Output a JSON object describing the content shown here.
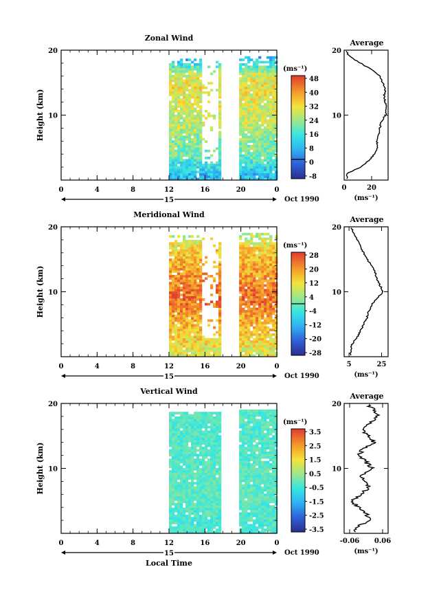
{
  "figure": {
    "date_label": "Oct 1990",
    "day_label": "15",
    "x_axis_label": "Local Time"
  },
  "chart_data": [
    {
      "type": "heatmap",
      "title": "Zonal Wind",
      "ylabel": "Height (km)",
      "xlabel": "",
      "x_ticks": [
        "0",
        "4",
        "8",
        "12",
        "16",
        "20",
        "0"
      ],
      "y_ticks": [
        "20",
        "10"
      ],
      "ylim": [
        0,
        20
      ],
      "xlim_hours": [
        0,
        24
      ],
      "data_intervals_hours": [
        [
          12,
          17.8
        ],
        [
          19.8,
          24
        ]
      ],
      "gap_heights_km": [],
      "colorbar": {
        "unit": "(ms⁻¹)",
        "ticks": [
          "48",
          "40",
          "32",
          "24",
          "16",
          "8",
          "0",
          "-8"
        ],
        "range": [
          -12,
          52
        ],
        "zero_line": 0
      },
      "profile_by_height_km": {
        "heights": [
          1,
          2,
          3,
          4,
          5,
          6,
          7,
          8,
          9,
          10,
          11,
          12,
          13,
          14,
          15,
          16,
          17,
          18,
          19,
          20
        ],
        "values": [
          8,
          12,
          16,
          20,
          22,
          23,
          24,
          26,
          28,
          28,
          30,
          30,
          31,
          32,
          32,
          30,
          24,
          14,
          6,
          2
        ]
      },
      "average": {
        "title": "Average",
        "xlabel": "(ms⁻¹)",
        "x_ticks": [
          "0",
          "20"
        ],
        "xlim": [
          0,
          32
        ],
        "y_ticks": [
          "20",
          "10"
        ],
        "heights": [
          1,
          2,
          3,
          4,
          5,
          6,
          7,
          8,
          9,
          10,
          11,
          12,
          13,
          14,
          15,
          16,
          17,
          18,
          19,
          20
        ],
        "values": [
          2,
          12,
          18,
          22,
          24,
          24,
          25,
          26,
          27,
          30,
          31,
          30,
          29,
          30,
          28,
          26,
          20,
          12,
          4,
          1
        ]
      }
    },
    {
      "type": "heatmap",
      "title": "Meridional Wind",
      "ylabel": "Height (km)",
      "xlabel": "",
      "x_ticks": [
        "0",
        "4",
        "8",
        "12",
        "16",
        "20",
        "0"
      ],
      "y_ticks": [
        "20",
        "10"
      ],
      "ylim": [
        0,
        20
      ],
      "xlim_hours": [
        0,
        24
      ],
      "data_intervals_hours": [
        [
          12,
          17.8
        ],
        [
          19.8,
          24
        ]
      ],
      "gap_heights_km": [],
      "colorbar": {
        "unit": "(ms⁻¹)",
        "ticks": [
          "28",
          "20",
          "12",
          "4",
          "-4",
          "-12",
          "-20",
          "-28"
        ],
        "range": [
          -32,
          32
        ],
        "zero_line": 0
      },
      "profile_by_height_km": {
        "heights": [
          1,
          2,
          3,
          4,
          5,
          6,
          7,
          8,
          9,
          10,
          11,
          12,
          13,
          14,
          15,
          16,
          17,
          18,
          19,
          20
        ],
        "values": [
          10,
          13,
          15,
          16,
          18,
          20,
          22,
          24,
          26,
          26,
          24,
          22,
          22,
          20,
          18,
          16,
          14,
          10,
          6,
          6
        ]
      },
      "average": {
        "title": "Average",
        "xlabel": "(ms⁻¹)",
        "x_ticks": [
          "5",
          "25"
        ],
        "xlim": [
          2,
          29
        ],
        "y_ticks": [
          "20",
          "10"
        ],
        "heights": [
          1,
          2,
          3,
          4,
          5,
          6,
          7,
          8,
          9,
          10,
          11,
          12,
          13,
          14,
          15,
          16,
          17,
          18,
          19,
          20
        ],
        "values": [
          6,
          7,
          10,
          12,
          14,
          16,
          17,
          19,
          22,
          26,
          24,
          22,
          21,
          19,
          16,
          14,
          12,
          10,
          8,
          6
        ]
      }
    },
    {
      "type": "heatmap",
      "title": "Vertical Wind",
      "ylabel": "Height (km)",
      "xlabel": "Local Time",
      "x_ticks": [
        "0",
        "4",
        "8",
        "12",
        "16",
        "20",
        "0"
      ],
      "y_ticks": [
        "20",
        "10"
      ],
      "ylim": [
        0,
        20
      ],
      "xlim_hours": [
        0,
        24
      ],
      "data_intervals_hours": [
        [
          12,
          17.8
        ],
        [
          19.8,
          24
        ]
      ],
      "gap_heights_km": [],
      "colorbar": {
        "unit": "(ms⁻¹)",
        "ticks": [
          "3.5",
          "2.5",
          "1.5",
          "0.5",
          "-0.5",
          "-1.5",
          "-2.5",
          "-3.5"
        ],
        "range": [
          -4,
          4
        ],
        "zero_line": null
      },
      "profile_by_height_km": {
        "heights": [
          1,
          2,
          3,
          4,
          5,
          6,
          7,
          8,
          9,
          10,
          11,
          12,
          13,
          14,
          15,
          16,
          17,
          18,
          19,
          20
        ],
        "values": [
          -0.4,
          -0.4,
          -0.3,
          -0.3,
          -0.2,
          -0.2,
          -0.2,
          -0.3,
          -0.2,
          -0.2,
          -0.3,
          -0.3,
          -0.3,
          -0.3,
          -0.3,
          -0.3,
          -0.3,
          -0.3,
          -0.3,
          -0.3
        ]
      },
      "average": {
        "title": "Average",
        "xlabel": "(ms⁻¹)",
        "x_ticks": [
          "-0.06",
          "0.06"
        ],
        "xlim": [
          -0.08,
          0.08
        ],
        "y_ticks": [
          "20",
          "10"
        ],
        "heights": [
          1,
          2,
          3,
          4,
          5,
          6,
          7,
          8,
          9,
          10,
          11,
          12,
          13,
          14,
          15,
          16,
          17,
          18,
          19,
          20
        ],
        "values": [
          -0.04,
          0.02,
          0.0,
          -0.03,
          -0.05,
          -0.02,
          0.01,
          0.0,
          -0.02,
          0.02,
          0.0,
          -0.03,
          -0.01,
          0.03,
          0.01,
          -0.02,
          0.02,
          0.04,
          0.03,
          0.0
        ]
      }
    }
  ]
}
